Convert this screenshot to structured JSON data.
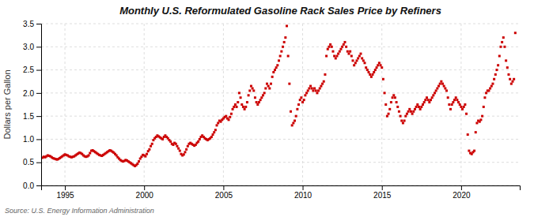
{
  "chart_data": {
    "type": "scatter",
    "title": "Monthly U.S. Reformulated Gasoline Rack Sales Price by Refiners",
    "ylabel": "Dollars per Gallon",
    "annotations": [
      "Source: U.S. Energy Information Administration"
    ],
    "color": "#cc0000",
    "marker": "square",
    "grid": true,
    "xlim": [
      1993.5,
      2023.7
    ],
    "ylim": [
      0.0,
      3.5
    ],
    "xticks": [
      1995,
      2000,
      2005,
      2010,
      2015,
      2020
    ],
    "yticks": [
      {
        "value": 0.0,
        "label": "0.0"
      },
      0.5,
      {
        "value": 1.0,
        "label": "1.0"
      },
      1.5,
      {
        "value": 2.0,
        "label": "2.0"
      },
      2.5,
      {
        "value": 3.0,
        "label": "3.0"
      },
      3.5
    ],
    "x": [
      1993.583,
      1993.667,
      1993.75,
      1993.833,
      1993.917,
      1994.0,
      1994.083,
      1994.167,
      1994.25,
      1994.333,
      1994.417,
      1994.5,
      1994.583,
      1994.667,
      1994.75,
      1994.833,
      1994.917,
      1995.0,
      1995.083,
      1995.167,
      1995.25,
      1995.333,
      1995.417,
      1995.5,
      1995.583,
      1995.667,
      1995.75,
      1995.833,
      1995.917,
      1996.0,
      1996.083,
      1996.167,
      1996.25,
      1996.333,
      1996.417,
      1996.5,
      1996.583,
      1996.667,
      1996.75,
      1996.833,
      1996.917,
      1997.0,
      1997.083,
      1997.167,
      1997.25,
      1997.333,
      1997.417,
      1997.5,
      1997.583,
      1997.667,
      1997.75,
      1997.833,
      1997.917,
      1998.0,
      1998.083,
      1998.167,
      1998.25,
      1998.333,
      1998.417,
      1998.5,
      1998.583,
      1998.667,
      1998.75,
      1998.833,
      1998.917,
      1999.0,
      1999.083,
      1999.167,
      1999.25,
      1999.333,
      1999.417,
      1999.5,
      1999.583,
      1999.667,
      1999.75,
      1999.833,
      1999.917,
      2000.0,
      2000.083,
      2000.167,
      2000.25,
      2000.333,
      2000.417,
      2000.5,
      2000.583,
      2000.667,
      2000.75,
      2000.833,
      2000.917,
      2001.0,
      2001.083,
      2001.167,
      2001.25,
      2001.333,
      2001.417,
      2001.5,
      2001.583,
      2001.667,
      2001.75,
      2001.833,
      2001.917,
      2002.0,
      2002.083,
      2002.167,
      2002.25,
      2002.333,
      2002.417,
      2002.5,
      2002.583,
      2002.667,
      2002.75,
      2002.833,
      2002.917,
      2003.0,
      2003.083,
      2003.167,
      2003.25,
      2003.333,
      2003.417,
      2003.5,
      2003.583,
      2003.667,
      2003.75,
      2003.833,
      2003.917,
      2004.0,
      2004.083,
      2004.167,
      2004.25,
      2004.333,
      2004.417,
      2004.5,
      2004.583,
      2004.667,
      2004.75,
      2004.833,
      2004.917,
      2005.0,
      2005.083,
      2005.167,
      2005.25,
      2005.333,
      2005.417,
      2005.5,
      2005.583,
      2005.667,
      2005.75,
      2005.833,
      2005.917,
      2006.0,
      2006.083,
      2006.167,
      2006.25,
      2006.333,
      2006.417,
      2006.5,
      2006.583,
      2006.667,
      2006.75,
      2006.833,
      2006.917,
      2007.0,
      2007.083,
      2007.167,
      2007.25,
      2007.333,
      2007.417,
      2007.5,
      2007.583,
      2007.667,
      2007.75,
      2007.833,
      2007.917,
      2008.0,
      2008.083,
      2008.167,
      2008.25,
      2008.333,
      2008.417,
      2008.5,
      2008.583,
      2008.667,
      2008.75,
      2008.833,
      2008.917,
      2009.0,
      2009.083,
      2009.167,
      2009.25,
      2009.333,
      2009.417,
      2009.5,
      2009.583,
      2009.667,
      2009.75,
      2009.833,
      2009.917,
      2010.0,
      2010.083,
      2010.167,
      2010.25,
      2010.333,
      2010.417,
      2010.5,
      2010.583,
      2010.667,
      2010.75,
      2010.833,
      2010.917,
      2011.0,
      2011.083,
      2011.167,
      2011.25,
      2011.333,
      2011.417,
      2011.5,
      2011.583,
      2011.667,
      2011.75,
      2011.833,
      2011.917,
      2012.0,
      2012.083,
      2012.167,
      2012.25,
      2012.333,
      2012.417,
      2012.5,
      2012.583,
      2012.667,
      2012.75,
      2012.833,
      2012.917,
      2013.0,
      2013.083,
      2013.167,
      2013.25,
      2013.333,
      2013.417,
      2013.5,
      2013.583,
      2013.667,
      2013.75,
      2013.833,
      2013.917,
      2014.0,
      2014.083,
      2014.167,
      2014.25,
      2014.333,
      2014.417,
      2014.5,
      2014.583,
      2014.667,
      2014.75,
      2014.833,
      2014.917,
      2015.0,
      2015.083,
      2015.167,
      2015.25,
      2015.333,
      2015.417,
      2015.5,
      2015.583,
      2015.667,
      2015.75,
      2015.833,
      2015.917,
      2016.0,
      2016.083,
      2016.167,
      2016.25,
      2016.333,
      2016.417,
      2016.5,
      2016.583,
      2016.667,
      2016.75,
      2016.833,
      2016.917,
      2017.0,
      2017.083,
      2017.167,
      2017.25,
      2017.333,
      2017.417,
      2017.5,
      2017.583,
      2017.667,
      2017.75,
      2017.833,
      2017.917,
      2018.0,
      2018.083,
      2018.167,
      2018.25,
      2018.333,
      2018.417,
      2018.5,
      2018.583,
      2018.667,
      2018.75,
      2018.833,
      2018.917,
      2019.0,
      2019.083,
      2019.167,
      2019.25,
      2019.333,
      2019.417,
      2019.5,
      2019.583,
      2019.667,
      2019.75,
      2019.833,
      2019.917,
      2020.0,
      2020.083,
      2020.167,
      2020.25,
      2020.333,
      2020.417,
      2020.5,
      2020.583,
      2020.667,
      2020.75,
      2020.833,
      2020.917,
      2021.0,
      2021.083,
      2021.167,
      2021.25,
      2021.333,
      2021.417,
      2021.5,
      2021.583,
      2021.667,
      2021.75,
      2021.833,
      2021.917,
      2022.0,
      2022.083,
      2022.167,
      2022.25,
      2022.333,
      2022.417,
      2022.5,
      2022.583,
      2022.667,
      2022.75,
      2022.833,
      2022.917,
      2023.0,
      2023.083,
      2023.167,
      2023.25,
      2023.333,
      2023.417
    ],
    "values": [
      0.6,
      0.62,
      0.61,
      0.63,
      0.65,
      0.64,
      0.63,
      0.61,
      0.59,
      0.58,
      0.57,
      0.56,
      0.57,
      0.59,
      0.61,
      0.63,
      0.65,
      0.67,
      0.66,
      0.65,
      0.63,
      0.62,
      0.61,
      0.62,
      0.63,
      0.65,
      0.67,
      0.69,
      0.71,
      0.7,
      0.68,
      0.65,
      0.63,
      0.62,
      0.63,
      0.65,
      0.7,
      0.75,
      0.76,
      0.74,
      0.72,
      0.7,
      0.68,
      0.66,
      0.65,
      0.64,
      0.66,
      0.68,
      0.7,
      0.72,
      0.74,
      0.76,
      0.75,
      0.73,
      0.71,
      0.68,
      0.65,
      0.61,
      0.58,
      0.55,
      0.53,
      0.52,
      0.53,
      0.55,
      0.54,
      0.52,
      0.5,
      0.48,
      0.46,
      0.44,
      0.42,
      0.44,
      0.47,
      0.52,
      0.58,
      0.62,
      0.66,
      0.65,
      0.63,
      0.68,
      0.74,
      0.78,
      0.85,
      0.9,
      0.98,
      1.02,
      1.05,
      1.08,
      1.06,
      1.04,
      1.02,
      1.0,
      1.05,
      1.08,
      1.05,
      1.02,
      0.98,
      0.95,
      0.9,
      0.88,
      0.92,
      0.9,
      0.85,
      0.8,
      0.75,
      0.68,
      0.65,
      0.67,
      0.72,
      0.78,
      0.85,
      0.9,
      0.92,
      0.9,
      0.88,
      0.86,
      0.88,
      0.92,
      0.95,
      1.0,
      1.05,
      1.08,
      1.05,
      1.02,
      1.0,
      0.98,
      1.0,
      1.02,
      1.05,
      1.1,
      1.15,
      1.2,
      1.3,
      1.35,
      1.4,
      1.38,
      1.42,
      1.45,
      1.48,
      1.5,
      1.45,
      1.42,
      1.48,
      1.55,
      1.65,
      1.7,
      1.75,
      1.7,
      1.8,
      2.0,
      1.9,
      1.75,
      1.7,
      1.65,
      1.7,
      1.8,
      1.95,
      2.05,
      2.15,
      2.1,
      2.05,
      1.9,
      1.8,
      1.75,
      1.8,
      1.85,
      1.9,
      1.95,
      2.0,
      2.1,
      2.2,
      2.15,
      2.1,
      2.2,
      2.35,
      2.45,
      2.5,
      2.55,
      2.6,
      2.7,
      2.8,
      2.9,
      3.0,
      3.1,
      3.2,
      3.45,
      2.8,
      2.2,
      1.6,
      1.3,
      1.35,
      1.4,
      1.5,
      1.65,
      1.75,
      1.85,
      1.9,
      1.8,
      1.85,
      1.95,
      2.0,
      2.05,
      2.1,
      2.15,
      2.1,
      2.05,
      2.1,
      2.05,
      2.0,
      2.05,
      2.1,
      2.15,
      2.2,
      2.25,
      2.4,
      2.8,
      2.95,
      3.0,
      3.05,
      3.0,
      2.9,
      2.8,
      2.75,
      2.8,
      2.85,
      2.9,
      2.95,
      3.0,
      3.05,
      3.1,
      3.0,
      2.9,
      2.85,
      2.9,
      2.8,
      2.7,
      2.6,
      2.65,
      2.7,
      2.75,
      2.8,
      2.85,
      2.75,
      2.7,
      2.65,
      2.55,
      2.5,
      2.45,
      2.4,
      2.35,
      2.4,
      2.45,
      2.5,
      2.55,
      2.6,
      2.65,
      2.6,
      2.55,
      2.3,
      2.0,
      1.75,
      1.5,
      1.55,
      1.65,
      1.8,
      1.9,
      1.95,
      1.9,
      1.8,
      1.7,
      1.6,
      1.5,
      1.4,
      1.35,
      1.4,
      1.5,
      1.55,
      1.6,
      1.65,
      1.6,
      1.55,
      1.6,
      1.65,
      1.7,
      1.75,
      1.7,
      1.65,
      1.7,
      1.75,
      1.8,
      1.85,
      1.9,
      1.85,
      1.8,
      1.85,
      1.9,
      1.95,
      2.0,
      2.05,
      2.1,
      2.15,
      2.2,
      2.25,
      2.2,
      2.15,
      2.1,
      2.05,
      1.9,
      1.75,
      1.65,
      1.75,
      1.8,
      1.85,
      1.9,
      1.85,
      1.8,
      1.75,
      1.7,
      1.65,
      1.7,
      1.75,
      1.55,
      1.1,
      0.75,
      0.7,
      0.68,
      0.72,
      0.75,
      1.15,
      1.35,
      1.4,
      1.38,
      1.42,
      1.5,
      1.7,
      1.9,
      2.0,
      2.05,
      2.05,
      2.1,
      2.15,
      2.2,
      2.3,
      2.4,
      2.5,
      2.6,
      2.8,
      3.0,
      3.1,
      3.2,
      3.0,
      2.7,
      2.55,
      2.4,
      2.3,
      2.2,
      2.25,
      2.3,
      3.3
    ]
  }
}
